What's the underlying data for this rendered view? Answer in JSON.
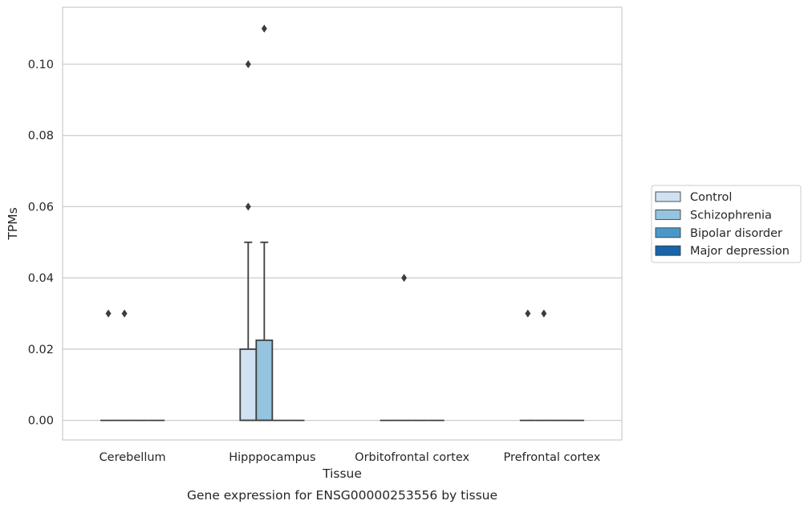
{
  "chart_data": {
    "type": "box",
    "title": "Gene expression for ENSG00000253556 by tissue",
    "xlabel": "Tissue",
    "ylabel": "TPMs",
    "ylim": [
      -0.0055,
      0.116
    ],
    "yticks": [
      "0.00",
      "0.02",
      "0.04",
      "0.06",
      "0.08",
      "0.10"
    ],
    "ytick_values": [
      0,
      0.02,
      0.04,
      0.06,
      0.08,
      0.1
    ],
    "grid": true,
    "legend_position": "right",
    "categories": [
      "Cerebellum",
      "Hipppocampus",
      "Orbitofrontal cortex",
      "Prefrontal cortex"
    ],
    "series": [
      {
        "name": "Control",
        "color": "#d0e1f2",
        "boxes": [
          {
            "q1": 0,
            "median": 0,
            "q3": 0,
            "whisker_low": 0,
            "whisker_high": 0,
            "outliers": [
              0.03
            ]
          },
          {
            "q1": 0,
            "median": 0,
            "q3": 0.02,
            "whisker_low": 0,
            "whisker_high": 0.05,
            "outliers": [
              0.06,
              0.1
            ]
          },
          {
            "q1": 0,
            "median": 0,
            "q3": 0,
            "whisker_low": 0,
            "whisker_high": 0,
            "outliers": []
          },
          {
            "q1": 0,
            "median": 0,
            "q3": 0,
            "whisker_low": 0,
            "whisker_high": 0,
            "outliers": [
              0.03
            ]
          }
        ]
      },
      {
        "name": "Schizophrenia",
        "color": "#94c4df",
        "boxes": [
          {
            "q1": 0,
            "median": 0,
            "q3": 0,
            "whisker_low": 0,
            "whisker_high": 0,
            "outliers": [
              0.03
            ]
          },
          {
            "q1": 0,
            "median": 0,
            "q3": 0.0225,
            "whisker_low": 0,
            "whisker_high": 0.05,
            "outliers": [
              0.11
            ]
          },
          {
            "q1": 0,
            "median": 0,
            "q3": 0,
            "whisker_low": 0,
            "whisker_high": 0,
            "outliers": [
              0.04
            ]
          },
          {
            "q1": 0,
            "median": 0,
            "q3": 0,
            "whisker_low": 0,
            "whisker_high": 0,
            "outliers": [
              0.03
            ]
          }
        ]
      },
      {
        "name": "Bipolar disorder",
        "color": "#4a98c9",
        "boxes": [
          {
            "q1": 0,
            "median": 0,
            "q3": 0,
            "whisker_low": 0,
            "whisker_high": 0,
            "outliers": []
          },
          {
            "q1": 0,
            "median": 0,
            "q3": 0,
            "whisker_low": 0,
            "whisker_high": 0,
            "outliers": []
          },
          {
            "q1": 0,
            "median": 0,
            "q3": 0,
            "whisker_low": 0,
            "whisker_high": 0,
            "outliers": []
          },
          {
            "q1": 0,
            "median": 0,
            "q3": 0,
            "whisker_low": 0,
            "whisker_high": 0,
            "outliers": []
          }
        ]
      },
      {
        "name": "Major depression",
        "color": "#1764ab",
        "boxes": [
          {
            "q1": 0,
            "median": 0,
            "q3": 0,
            "whisker_low": 0,
            "whisker_high": 0,
            "outliers": []
          },
          {
            "q1": 0,
            "median": 0,
            "q3": 0,
            "whisker_low": 0,
            "whisker_high": 0,
            "outliers": []
          },
          {
            "q1": 0,
            "median": 0,
            "q3": 0,
            "whisker_low": 0,
            "whisker_high": 0,
            "outliers": []
          },
          {
            "q1": 0,
            "median": 0,
            "q3": 0,
            "whisker_low": 0,
            "whisker_high": 0,
            "outliers": []
          }
        ]
      }
    ]
  }
}
